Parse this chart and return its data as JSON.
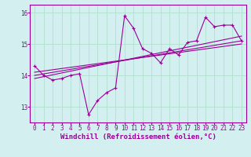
{
  "xlabel": "Windchill (Refroidissement éolien,°C)",
  "ylabel": "",
  "background_color": "#d4efef",
  "line_color": "#990099",
  "grid_color": "#aaddcc",
  "xlim": [
    -0.5,
    23.5
  ],
  "ylim": [
    12.5,
    16.25
  ],
  "yticks": [
    13,
    14,
    15,
    16
  ],
  "xticks": [
    0,
    1,
    2,
    3,
    4,
    5,
    6,
    7,
    8,
    9,
    10,
    11,
    12,
    13,
    14,
    15,
    16,
    17,
    18,
    19,
    20,
    21,
    22,
    23
  ],
  "main_x": [
    0,
    1,
    2,
    3,
    4,
    5,
    6,
    7,
    8,
    9,
    10,
    11,
    12,
    13,
    14,
    15,
    16,
    17,
    18,
    19,
    20,
    21,
    22,
    23
  ],
  "main_y": [
    14.3,
    14.0,
    13.85,
    13.9,
    14.0,
    14.05,
    12.75,
    13.2,
    13.45,
    13.6,
    15.9,
    15.5,
    14.85,
    14.7,
    14.4,
    14.85,
    14.65,
    15.05,
    15.1,
    15.85,
    15.55,
    15.6,
    15.6,
    15.1
  ],
  "trend1_x": [
    0,
    23
  ],
  "trend1_y": [
    14.0,
    15.1
  ],
  "trend2_x": [
    0,
    23
  ],
  "trend2_y": [
    13.9,
    15.25
  ],
  "trend3_x": [
    0,
    23
  ],
  "trend3_y": [
    14.1,
    15.0
  ],
  "title_fontsize": 6.5,
  "xlabel_fontsize": 6.5,
  "tick_fontsize": 5.5
}
